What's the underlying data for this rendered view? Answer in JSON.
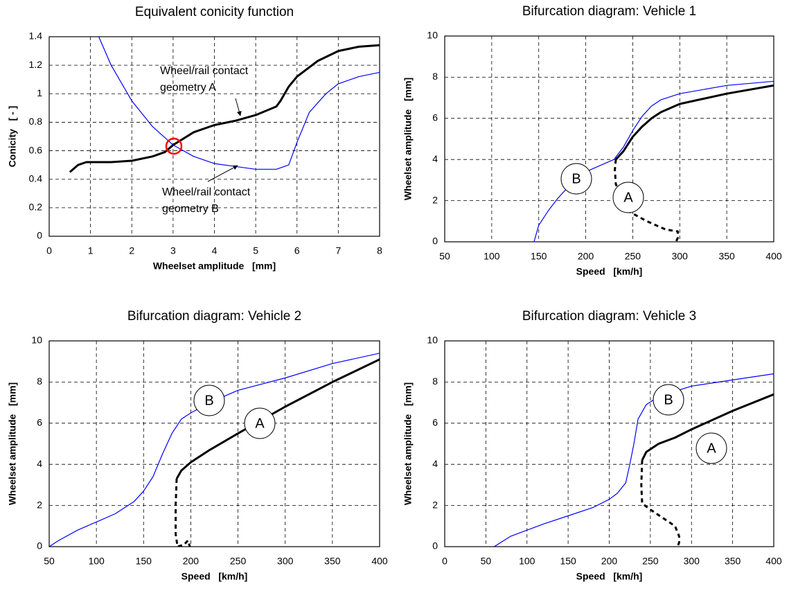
{
  "chart_data": [
    {
      "type": "line",
      "title": "Equivalent conicity function",
      "xlabel": "Wheelset amplitude   [mm]",
      "ylabel": "Conicity   [ - ]",
      "xlim": [
        0,
        8
      ],
      "ylim": [
        0,
        1.4
      ],
      "xticks": [
        0,
        1,
        2,
        3,
        4,
        5,
        6,
        7,
        8
      ],
      "yticks": [
        0,
        0.2,
        0.4,
        0.6,
        0.8,
        1,
        1.2,
        1.4
      ],
      "grid": true,
      "annotations": [
        [
          "Wheel/rail contact",
          "geometry A"
        ],
        [
          "Wheel/rail contact",
          "geometry B"
        ]
      ],
      "series": [
        {
          "color": "#000000",
          "linewidth": 3,
          "style": "solid",
          "x": [
            0.5,
            0.7,
            0.9,
            1.5,
            2,
            2.5,
            2.8,
            3,
            3.5,
            4,
            4.5,
            5,
            5.5,
            5.6,
            5.8,
            6,
            6.5,
            7,
            7.5,
            8
          ],
          "values": [
            0.45,
            0.5,
            0.52,
            0.52,
            0.53,
            0.56,
            0.59,
            0.64,
            0.73,
            0.78,
            0.81,
            0.85,
            0.91,
            0.95,
            1.05,
            1.12,
            1.23,
            1.3,
            1.33,
            1.34
          ]
        },
        {
          "color": "#0000ff",
          "linewidth": 1.2,
          "style": "solid",
          "x": [
            1.2,
            1.5,
            2,
            2.5,
            3,
            3.5,
            4,
            4.5,
            5,
            5.5,
            5.8,
            6,
            6.3,
            6.7,
            7,
            7.5,
            8
          ],
          "values": [
            1.4,
            1.2,
            0.95,
            0.77,
            0.64,
            0.56,
            0.51,
            0.49,
            0.47,
            0.47,
            0.5,
            0.66,
            0.87,
            1.0,
            1.07,
            1.12,
            1.15
          ]
        }
      ]
    },
    {
      "type": "line",
      "title": "Bifurcation diagram: Vehicle 1",
      "xlabel": "Speed   [km/h]",
      "ylabel": "Wheelset amplitude   [mm]",
      "xlim": [
        50,
        400
      ],
      "ylim": [
        0,
        10
      ],
      "xticks": [
        50,
        100,
        150,
        200,
        250,
        300,
        350,
        400
      ],
      "yticks": [
        0,
        2,
        4,
        6,
        8,
        10
      ],
      "grid": true,
      "series": [
        {
          "name": "B",
          "color": "#0000ff",
          "linewidth": 1.2,
          "style": "solid",
          "x": [
            145,
            150,
            160,
            170,
            180,
            190,
            200,
            210,
            220,
            230,
            240,
            250,
            260,
            270,
            280,
            300,
            350,
            400
          ],
          "values": [
            0,
            0.8,
            1.5,
            2.1,
            2.6,
            3.1,
            3.4,
            3.6,
            3.8,
            4.0,
            4.6,
            5.4,
            6.1,
            6.6,
            6.9,
            7.2,
            7.6,
            7.8
          ]
        },
        {
          "name": "A",
          "color": "#000000",
          "linewidth": 3,
          "style": "solid",
          "x": [
            232,
            240,
            250,
            260,
            270,
            280,
            300,
            350,
            400
          ],
          "values": [
            4.0,
            4.4,
            5.1,
            5.6,
            6.0,
            6.3,
            6.7,
            7.2,
            7.6
          ]
        },
        {
          "color": "#000000",
          "linewidth": 3,
          "style": "dashed",
          "x": [
            232,
            231,
            232,
            245,
            265,
            285,
            298,
            298,
            296
          ],
          "values": [
            4.0,
            3.5,
            2.8,
            1.5,
            1.0,
            0.6,
            0.5,
            0.2,
            0
          ]
        }
      ]
    },
    {
      "type": "line",
      "title": "Bifurcation diagram: Vehicle 2",
      "xlabel": "Speed   [km/h]",
      "ylabel": "Wheelset amplitude   [mm]",
      "xlim": [
        50,
        400
      ],
      "ylim": [
        0,
        10
      ],
      "xticks": [
        50,
        100,
        150,
        200,
        250,
        300,
        350,
        400
      ],
      "yticks": [
        0,
        2,
        4,
        6,
        8,
        10
      ],
      "grid": true,
      "series": [
        {
          "name": "B",
          "color": "#0000ff",
          "linewidth": 1.2,
          "style": "solid",
          "x": [
            50,
            60,
            80,
            100,
            120,
            140,
            150,
            160,
            170,
            180,
            190,
            200,
            220,
            250,
            300,
            350,
            400
          ],
          "values": [
            0,
            0.3,
            0.8,
            1.2,
            1.6,
            2.2,
            2.7,
            3.4,
            4.5,
            5.5,
            6.2,
            6.5,
            7.0,
            7.6,
            8.2,
            8.9,
            9.4
          ]
        },
        {
          "name": "A",
          "color": "#000000",
          "linewidth": 3,
          "style": "solid",
          "x": [
            185,
            190,
            200,
            220,
            250,
            300,
            350,
            400
          ],
          "values": [
            3.3,
            3.7,
            4.1,
            4.7,
            5.5,
            6.8,
            8.0,
            9.1
          ]
        },
        {
          "color": "#000000",
          "linewidth": 3,
          "style": "dashed",
          "x": [
            185,
            184,
            184,
            186,
            193,
            197,
            199
          ],
          "values": [
            3.3,
            2.0,
            0.6,
            0,
            0.1,
            0.3,
            0
          ]
        }
      ]
    },
    {
      "type": "line",
      "title": "Bifurcation diagram: Vehicle 3",
      "xlabel": "Speed   [km/h]",
      "ylabel": "Wheelset amplitude   [mm]",
      "xlim": [
        0,
        400
      ],
      "ylim": [
        0,
        10
      ],
      "xticks": [
        0,
        50,
        100,
        150,
        200,
        250,
        300,
        350,
        400
      ],
      "yticks": [
        0,
        2,
        4,
        6,
        8,
        10
      ],
      "grid": true,
      "series": [
        {
          "name": "B",
          "color": "#0000ff",
          "linewidth": 1.2,
          "style": "solid",
          "x": [
            60,
            80,
            100,
            120,
            150,
            180,
            200,
            210,
            220,
            225,
            230,
            235,
            245,
            260,
            300,
            350,
            400
          ],
          "values": [
            0,
            0.5,
            0.8,
            1.1,
            1.5,
            1.9,
            2.3,
            2.6,
            3.1,
            4.0,
            5.0,
            6.2,
            6.9,
            7.3,
            7.8,
            8.1,
            8.4
          ]
        },
        {
          "name": "A",
          "color": "#000000",
          "linewidth": 3,
          "style": "solid",
          "x": [
            240,
            245,
            260,
            280,
            300,
            350,
            400
          ],
          "values": [
            4.2,
            4.6,
            5.0,
            5.3,
            5.7,
            6.6,
            7.4
          ]
        },
        {
          "color": "#000000",
          "linewidth": 3,
          "style": "dashed",
          "x": [
            240,
            239,
            240,
            250,
            265,
            280,
            285,
            285,
            283
          ],
          "values": [
            4.2,
            3.0,
            2.1,
            1.8,
            1.4,
            1.0,
            0.5,
            0.2,
            0
          ]
        }
      ]
    }
  ]
}
